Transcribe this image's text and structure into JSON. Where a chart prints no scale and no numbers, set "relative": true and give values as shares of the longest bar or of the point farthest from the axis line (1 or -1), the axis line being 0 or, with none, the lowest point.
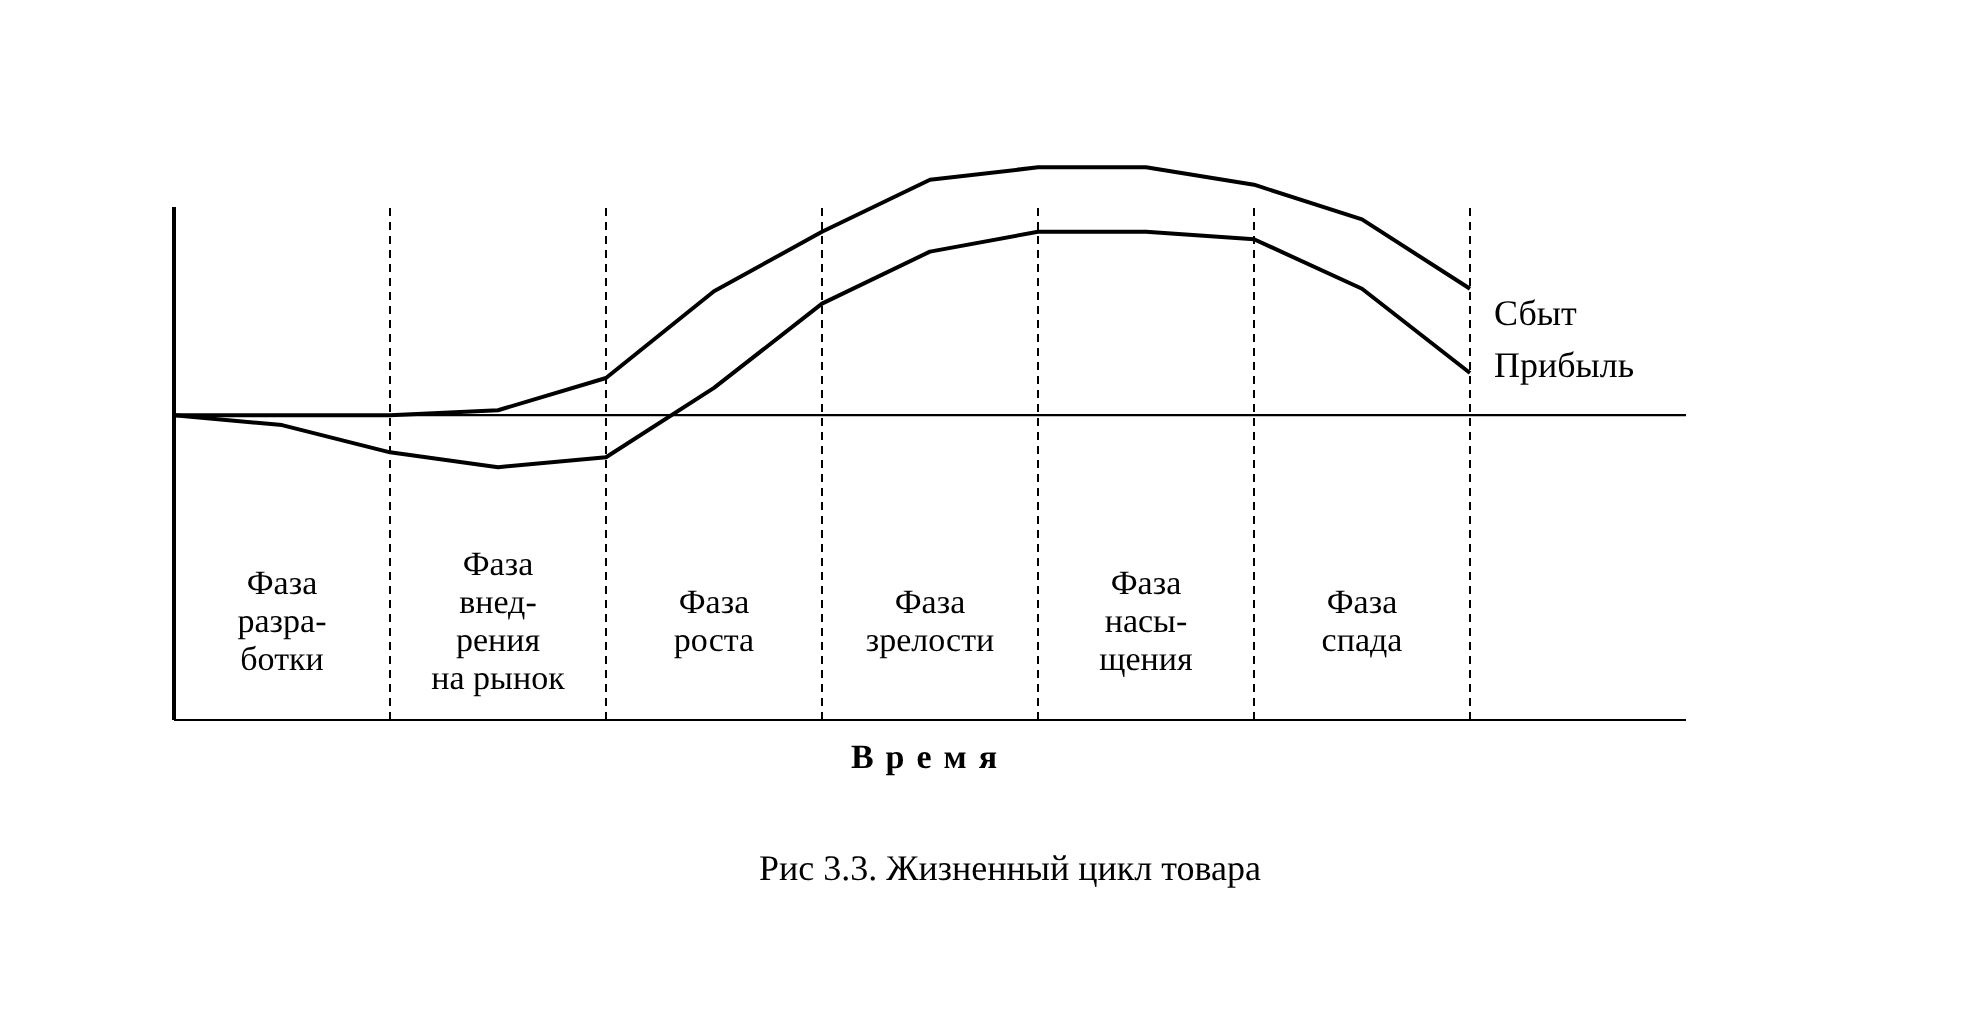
{
  "chart_data": {
    "type": "line",
    "title": "Рис 3.3. Жизненный цикл товара",
    "xlabel": "Время",
    "relative": true,
    "grid": "x",
    "legend": false,
    "marker": "none",
    "line_style": "solid",
    "categories": [
      null,
      "Фаза\nразра-\nботки",
      null,
      "Фаза\nвнед-\nрения\nна рынок",
      null,
      "Фаза\nроста",
      null,
      "Фаза\nзрелости",
      null,
      "Фаза\nнасы-\nщения",
      null,
      "Фаза\nспада",
      null,
      null,
      null
    ],
    "series": [
      {
        "name": "Сбыт",
        "color": "#000000",
        "values": [
          0,
          0,
          0,
          0.02,
          0.15,
          0.5,
          0.74,
          0.95,
          1,
          1,
          0.93,
          0.79,
          0.51,
          null,
          null
        ]
      },
      {
        "name": "Прибыль",
        "color": "#000000",
        "values": [
          0,
          -0.04,
          -0.15,
          -0.21,
          -0.17,
          0.11,
          0.45,
          0.66,
          0.74,
          0.74,
          0.71,
          0.51,
          0.17,
          null,
          null
        ]
      }
    ]
  }
}
